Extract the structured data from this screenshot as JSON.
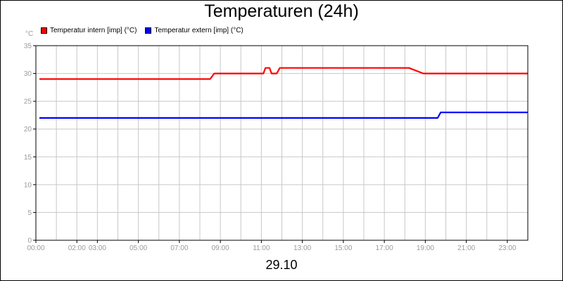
{
  "chart_data": {
    "type": "line",
    "title": "Temperaturen (24h)",
    "date_label": "29.10",
    "y_unit": "°C",
    "ylim": [
      0,
      35
    ],
    "y_ticks": [
      0,
      5,
      10,
      15,
      20,
      25,
      30,
      35
    ],
    "xlim": [
      0,
      24
    ],
    "x_ticks": [
      {
        "t": 0,
        "label": "00:00"
      },
      {
        "t": 2,
        "label": "02:00"
      },
      {
        "t": 3,
        "label": "03:00"
      },
      {
        "t": 5,
        "label": "05:00"
      },
      {
        "t": 7,
        "label": "07:00"
      },
      {
        "t": 9,
        "label": "09:00"
      },
      {
        "t": 11,
        "label": "11:00"
      },
      {
        "t": 13,
        "label": "13:00"
      },
      {
        "t": 15,
        "label": "15:00"
      },
      {
        "t": 17,
        "label": "17:00"
      },
      {
        "t": 19,
        "label": "19:00"
      },
      {
        "t": 21,
        "label": "21:00"
      },
      {
        "t": 23,
        "label": "23:00"
      }
    ],
    "grid": true,
    "legend_position": "top-left",
    "series": [
      {
        "name": "Temperatur intern [imp] (°C)",
        "color": "#ff0000",
        "points": [
          [
            0.17,
            29
          ],
          [
            8.5,
            29
          ],
          [
            8.7,
            30
          ],
          [
            11.1,
            30
          ],
          [
            11.2,
            31
          ],
          [
            11.4,
            31
          ],
          [
            11.5,
            30
          ],
          [
            11.75,
            30
          ],
          [
            11.9,
            31
          ],
          [
            18.2,
            31
          ],
          [
            18.9,
            30
          ],
          [
            24,
            30
          ]
        ]
      },
      {
        "name": "Temperatur extern [imp] (°C)",
        "color": "#0000ff",
        "points": [
          [
            0.17,
            22
          ],
          [
            19.6,
            22
          ],
          [
            19.75,
            23
          ],
          [
            24,
            23
          ]
        ]
      }
    ]
  }
}
